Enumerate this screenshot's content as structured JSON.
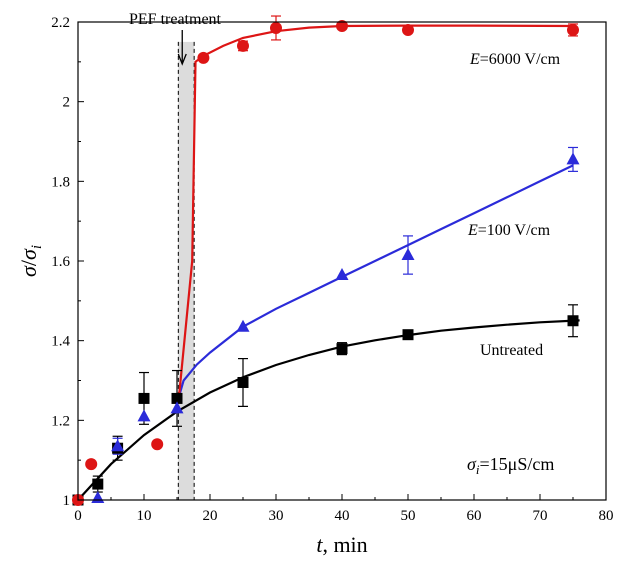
{
  "chart_data": {
    "type": "scatter",
    "xlabel": {
      "var": "t",
      "rest": ", min"
    },
    "ylabel": {
      "num": "σ",
      "sep": "/",
      "den": "σ",
      "sub": "i"
    },
    "xlim": [
      0,
      80
    ],
    "ylim": [
      1.0,
      2.2
    ],
    "xticks": [
      0,
      10,
      20,
      30,
      40,
      50,
      60,
      70,
      80
    ],
    "yticks": [
      1.0,
      1.2,
      1.4,
      1.6,
      1.8,
      2.0,
      2.2
    ],
    "xtick_labels": [
      "0",
      "10",
      "20",
      "30",
      "40",
      "50",
      "60",
      "70",
      "80"
    ],
    "ytick_labels": [
      "1",
      "1.2",
      "1.4",
      "1.6",
      "1.8",
      "2",
      "2.2"
    ],
    "grid": false,
    "treatment_band": {
      "x": [
        15.2,
        17.6
      ],
      "label": "PEF treatment"
    },
    "series": [
      {
        "name": "Untreated",
        "label_parts": {
          "pre": "",
          "rest": "Untreated"
        },
        "marker": "square",
        "color": "#000000",
        "points": [
          {
            "x": 0,
            "y": 1.0
          },
          {
            "x": 3,
            "y": 1.04,
            "err": 0.02
          },
          {
            "x": 6,
            "y": 1.13,
            "err": 0.03
          },
          {
            "x": 10,
            "y": 1.255,
            "err": 0.065
          },
          {
            "x": 15,
            "y": 1.255,
            "err": 0.07
          },
          {
            "x": 25,
            "y": 1.295,
            "err": 0.06
          },
          {
            "x": 40,
            "y": 1.38,
            "err": 0.015
          },
          {
            "x": 50,
            "y": 1.415,
            "err": 0.008
          },
          {
            "x": 75,
            "y": 1.45,
            "err": 0.04
          }
        ],
        "fit": [
          [
            0,
            1.0
          ],
          [
            5,
            1.09
          ],
          [
            10,
            1.163
          ],
          [
            15,
            1.222
          ],
          [
            20,
            1.27
          ],
          [
            25,
            1.308
          ],
          [
            30,
            1.339
          ],
          [
            35,
            1.364
          ],
          [
            40,
            1.385
          ],
          [
            45,
            1.401
          ],
          [
            50,
            1.414
          ],
          [
            55,
            1.425
          ],
          [
            60,
            1.433
          ],
          [
            65,
            1.44
          ],
          [
            70,
            1.446
          ],
          [
            76,
            1.451
          ]
        ]
      },
      {
        "name": "E=100 V/cm",
        "label_parts": {
          "pre": "E",
          "rest": "=100 V/cm"
        },
        "marker": "triangle",
        "color": "#2b2bd9",
        "points": [
          {
            "x": 3,
            "y": 1.005
          },
          {
            "x": 6,
            "y": 1.135,
            "err": 0.02
          },
          {
            "x": 10,
            "y": 1.21
          },
          {
            "x": 15,
            "y": 1.23
          },
          {
            "x": 25,
            "y": 1.435
          },
          {
            "x": 40,
            "y": 1.565
          },
          {
            "x": 50,
            "y": 1.615,
            "err": 0.048
          },
          {
            "x": 75,
            "y": 1.855,
            "err": 0.03
          }
        ],
        "fit": [
          [
            15.3,
            1.26
          ],
          [
            16,
            1.3
          ],
          [
            18,
            1.34
          ],
          [
            20,
            1.37
          ],
          [
            25,
            1.435
          ],
          [
            30,
            1.48
          ],
          [
            35,
            1.52
          ],
          [
            40,
            1.56
          ],
          [
            45,
            1.6
          ],
          [
            50,
            1.64
          ],
          [
            55,
            1.68
          ],
          [
            60,
            1.72
          ],
          [
            65,
            1.76
          ],
          [
            70,
            1.8
          ],
          [
            75,
            1.84
          ]
        ]
      },
      {
        "name": "E=6000 V/cm",
        "label_parts": {
          "pre": "E",
          "rest": "=6000 V/cm"
        },
        "marker": "circle",
        "color": "#dd1515",
        "points": [
          {
            "x": 0,
            "y": 1.0
          },
          {
            "x": 2,
            "y": 1.09
          },
          {
            "x": 12,
            "y": 1.14
          },
          {
            "x": 19,
            "y": 2.11
          },
          {
            "x": 25,
            "y": 2.14,
            "err": 0.012
          },
          {
            "x": 30,
            "y": 2.185,
            "err": 0.03
          },
          {
            "x": 40,
            "y": 2.19
          },
          {
            "x": 50,
            "y": 2.18
          },
          {
            "x": 75,
            "y": 2.18,
            "err": 0.015
          }
        ],
        "fit": [
          [
            15.3,
            1.26
          ],
          [
            17.3,
            1.6
          ],
          [
            17.8,
            2.1
          ],
          [
            19,
            2.115
          ],
          [
            22,
            2.14
          ],
          [
            25,
            2.16
          ],
          [
            30,
            2.177
          ],
          [
            35,
            2.186
          ],
          [
            40,
            2.19
          ],
          [
            50,
            2.191
          ],
          [
            60,
            2.191
          ],
          [
            75,
            2.19
          ]
        ]
      }
    ],
    "annotations": {
      "sigma_i": {
        "sym": "σ",
        "sub": "i",
        "rest": "=15μS/cm"
      }
    }
  }
}
